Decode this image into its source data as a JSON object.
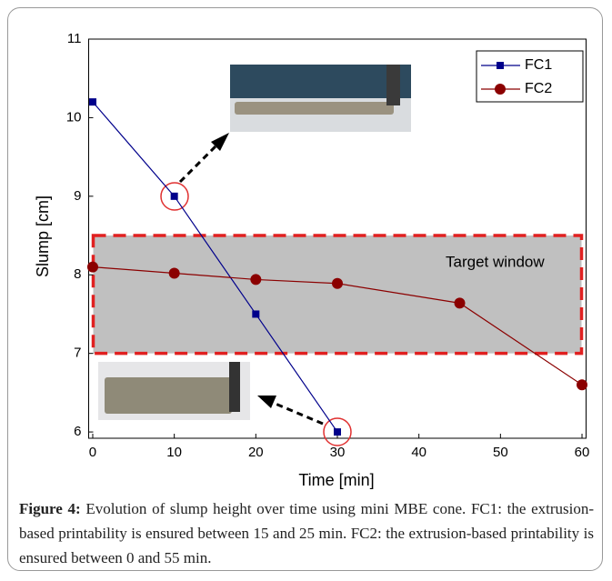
{
  "chart_data": {
    "type": "line",
    "xlabel": "Time [min]",
    "ylabel": "Slump [cm]",
    "xlim": [
      -0.5,
      60.5
    ],
    "xticks": [
      0,
      10,
      20,
      30,
      40,
      50,
      60
    ],
    "ylim": [
      5.92,
      11
    ],
    "yticks": [
      6,
      7,
      8,
      9,
      10,
      11
    ],
    "target_window": {
      "label": "Target window",
      "range": [
        7,
        8.5
      ]
    },
    "legend": "upper right",
    "series": [
      {
        "name": "FC1",
        "color": "#00008b",
        "marker": "square",
        "x": [
          0,
          10,
          20,
          30
        ],
        "values": [
          10.2,
          9,
          7.5,
          6
        ]
      },
      {
        "name": "FC2",
        "color": "#8b0000",
        "marker": "circle",
        "x": [
          0,
          10,
          20,
          30,
          45,
          60
        ],
        "values": [
          8.1,
          8.02,
          7.94,
          7.89,
          7.64,
          6.6
        ]
      }
    ]
  },
  "caption": {
    "label": "Figure 4:",
    "text": "Evolution of slump height over time using mini MBE cone. FC1: the extrusion-based printability is ensured between 15 and 25 min. FC2: the extrusion-based printability is ensured between 0 and 55 min."
  }
}
